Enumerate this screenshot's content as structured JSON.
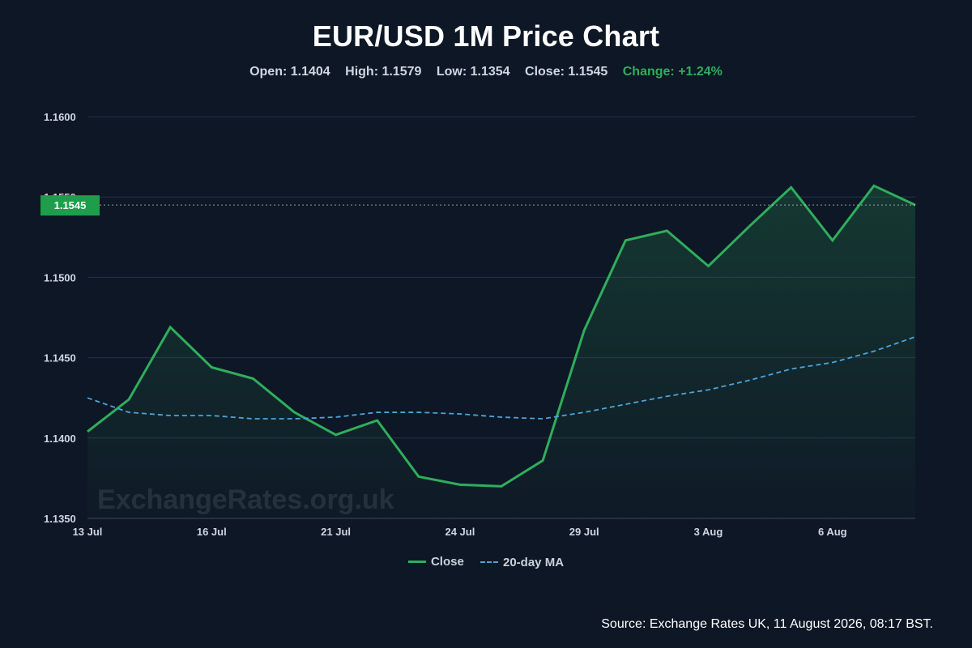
{
  "title": "EUR/USD 1M Price Chart",
  "stats": {
    "open": "Open: 1.1404",
    "high": "High: 1.1579",
    "low": "Low: 1.1354",
    "close": "Close: 1.1545",
    "change": "Change: +1.24%"
  },
  "watermark": "ExchangeRates.org.uk",
  "source": "Source: Exchange Rates UK, 11 August 2026, 08:17 BST.",
  "legend": {
    "close": "Close",
    "ma": "20-day MA"
  },
  "colors": {
    "background": "#0e1726",
    "close_line": "#2fae5b",
    "ma_line": "#4da3d9",
    "last_price_badge": "#1e9e4a",
    "grid": "#25324a"
  },
  "chart_data": {
    "type": "line",
    "x_ticks": [
      "13 Jul",
      "16 Jul",
      "21 Jul",
      "24 Jul",
      "29 Jul",
      "3 Aug",
      "6 Aug"
    ],
    "x_tick_index": [
      0,
      3,
      6,
      9,
      12,
      15,
      18
    ],
    "y_ticks": [
      "1.1350",
      "1.1400",
      "1.1450",
      "1.1500",
      "1.1550",
      "1.1600"
    ],
    "ylim": [
      1.135,
      1.16
    ],
    "grid": true,
    "legend_position": "bottom-center",
    "last_price_label": "1.1545",
    "last_price": 1.1545,
    "series": [
      {
        "name": "Close",
        "style": "solid-area",
        "values": [
          1.1404,
          1.1424,
          1.1469,
          1.1444,
          1.1437,
          1.1416,
          1.1402,
          1.1411,
          1.1376,
          1.1371,
          1.137,
          1.1386,
          1.1467,
          1.1523,
          1.1529,
          1.1507,
          1.1532,
          1.1556,
          1.1523,
          1.1557,
          1.1545
        ]
      },
      {
        "name": "20-day MA",
        "style": "dashed",
        "values": [
          1.1425,
          1.1416,
          1.1414,
          1.1414,
          1.1412,
          1.1412,
          1.1413,
          1.1416,
          1.1416,
          1.1415,
          1.1413,
          1.1412,
          1.1416,
          1.1421,
          1.1426,
          1.143,
          1.1436,
          1.1443,
          1.1447,
          1.1454,
          1.1463
        ]
      }
    ]
  }
}
